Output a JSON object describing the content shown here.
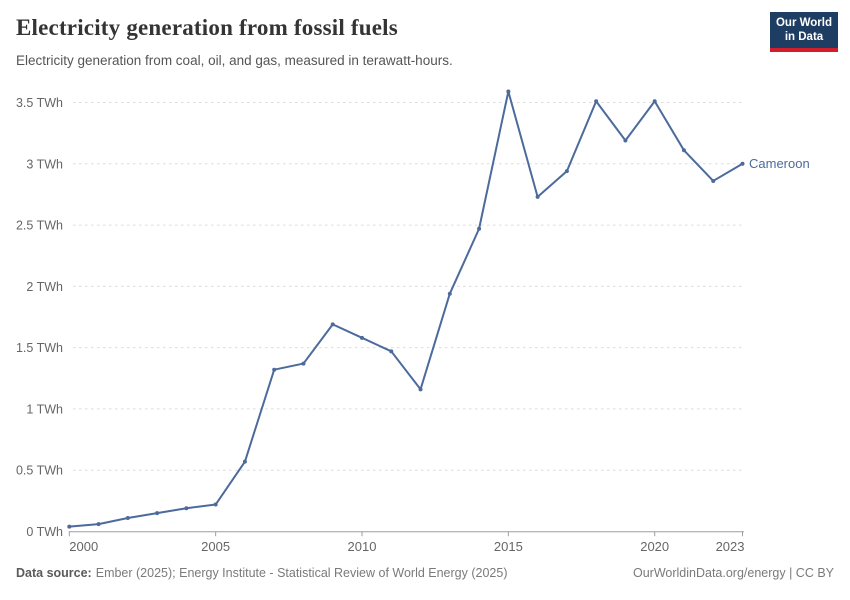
{
  "header": {
    "title": "Electricity generation from fossil fuels",
    "subtitle": "Electricity generation from coal, oil, and gas, measured in terawatt-hours."
  },
  "logo": {
    "line1": "Our World",
    "line2": "in Data",
    "background": "#1d3d63",
    "accent_bar": "#d21e2b"
  },
  "colors": {
    "series_line": "#4C6A9C",
    "gridline": "#dcdcdc",
    "axis": "#9e9e9e",
    "tick_label": "#666666"
  },
  "chart_data": {
    "type": "line",
    "title": "Electricity generation from fossil fuels",
    "unit": "TWh",
    "entity_label": "Cameroon",
    "x": [
      2000,
      2001,
      2002,
      2003,
      2004,
      2005,
      2006,
      2007,
      2008,
      2009,
      2010,
      2011,
      2012,
      2013,
      2014,
      2015,
      2016,
      2017,
      2018,
      2019,
      2020,
      2021,
      2022,
      2023
    ],
    "series": [
      {
        "name": "Cameroon",
        "values": [
          0.04,
          0.06,
          0.11,
          0.15,
          0.19,
          0.22,
          0.57,
          1.32,
          1.37,
          1.69,
          1.58,
          1.47,
          1.16,
          1.94,
          2.47,
          3.59,
          2.73,
          2.94,
          3.51,
          3.19,
          3.51,
          3.11,
          2.86,
          3.0
        ]
      }
    ],
    "x_ticks": [
      2000,
      2005,
      2010,
      2015,
      2020,
      2023
    ],
    "y_ticks": [
      {
        "value": 0,
        "label": "0 TWh"
      },
      {
        "value": 0.5,
        "label": "0.5 TWh"
      },
      {
        "value": 1,
        "label": "1 TWh"
      },
      {
        "value": 1.5,
        "label": "1.5 TWh"
      },
      {
        "value": 2,
        "label": "2 TWh"
      },
      {
        "value": 2.5,
        "label": "2.5 TWh"
      },
      {
        "value": 3,
        "label": "3 TWh"
      },
      {
        "value": 3.5,
        "label": "3.5 TWh"
      }
    ],
    "xlim": [
      2000,
      2023
    ],
    "ylim": [
      0,
      3.6
    ],
    "grid": "horizontal-dashed",
    "legend_position": "end-of-line-label"
  },
  "footer": {
    "source_label": "Data source:",
    "source_text": "Ember (2025); Energy Institute - Statistical Review of World Energy (2025)",
    "credit": "OurWorldinData.org/energy | CC BY"
  }
}
